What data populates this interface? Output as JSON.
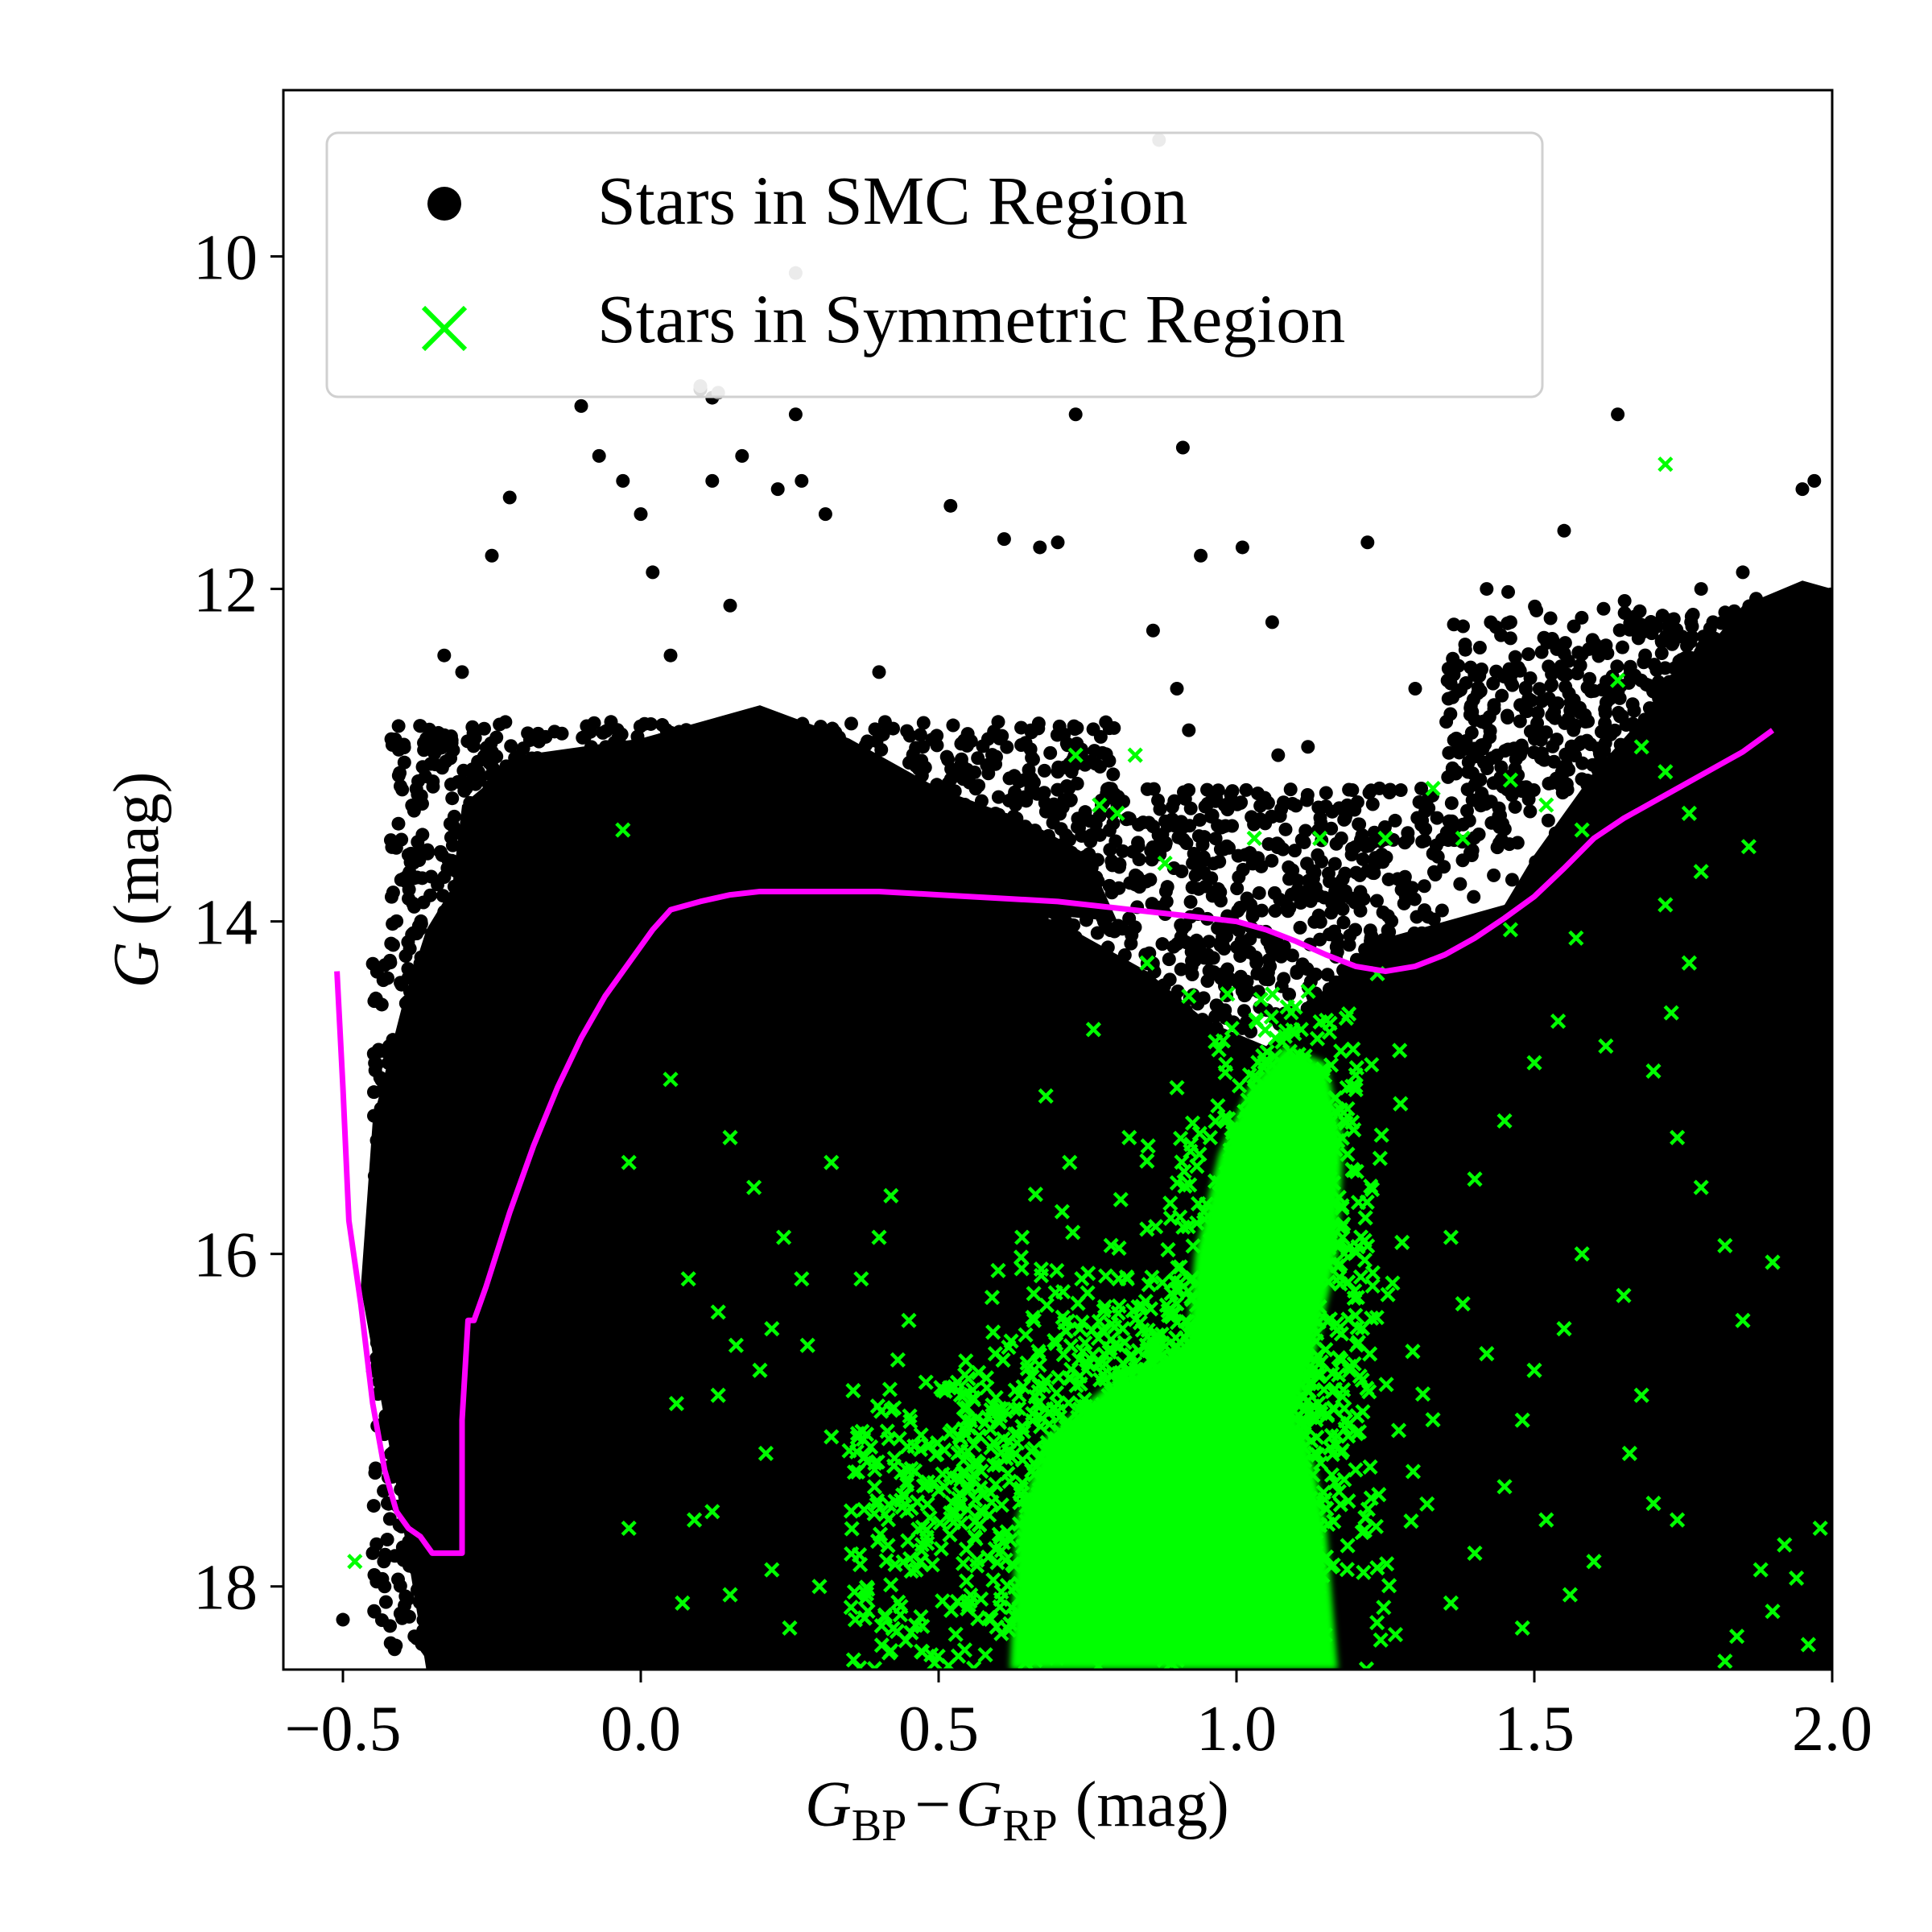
{
  "chart_data": {
    "type": "scatter",
    "title": "",
    "xlim": [
      -0.6,
      2.0
    ],
    "ylim": [
      18.5,
      9.0
    ],
    "y_inverted": true,
    "x_ticks": [
      -0.5,
      0.0,
      0.5,
      1.0,
      1.5,
      2.0
    ],
    "x_tick_labels": [
      "−0.5",
      "0.0",
      "0.5",
      "1.0",
      "1.5",
      "2.0"
    ],
    "y_ticks": [
      10,
      12,
      14,
      16,
      18
    ],
    "y_tick_labels": [
      "10",
      "12",
      "14",
      "16",
      "18"
    ],
    "xlabel": {
      "main": "G",
      "sub1": "BP",
      "minus": "−",
      "sub2": "RP",
      "unit": "(mag)"
    },
    "ylabel": {
      "main": "G",
      "unit": "(mag)"
    },
    "legend": {
      "placement": "upper-left",
      "entries": [
        {
          "label": "Stars in SMC Region",
          "marker": "dot",
          "color": "#000000"
        },
        {
          "label": "Stars in Symmetric Region",
          "marker": "x",
          "color": "#00ff00"
        }
      ]
    },
    "series": [
      {
        "name": "Stars in SMC Region",
        "kind": "scatter",
        "marker": "dot",
        "color": "#000000",
        "bright_points": [
          [
            -0.39,
            13.6
          ],
          [
            -0.36,
            12.9
          ],
          [
            -0.3,
            12.5
          ],
          [
            -0.33,
            12.4
          ],
          [
            -0.22,
            11.45
          ],
          [
            -0.25,
            11.8
          ],
          [
            -0.1,
            10.9
          ],
          [
            -0.07,
            11.2
          ],
          [
            -0.03,
            11.35
          ],
          [
            0.0,
            11.55
          ],
          [
            0.02,
            11.9
          ],
          [
            0.1,
            10.8
          ],
          [
            0.12,
            10.85
          ],
          [
            0.12,
            11.35
          ],
          [
            0.17,
            11.2
          ],
          [
            0.23,
            11.4
          ],
          [
            0.26,
            10.95
          ],
          [
            0.27,
            11.35
          ],
          [
            0.31,
            11.55
          ],
          [
            0.52,
            11.5
          ],
          [
            0.61,
            11.7
          ],
          [
            0.67,
            11.75
          ],
          [
            0.7,
            11.72
          ],
          [
            0.73,
            10.95
          ],
          [
            0.91,
            11.15
          ],
          [
            0.94,
            11.8
          ],
          [
            1.01,
            11.75
          ],
          [
            1.06,
            12.2
          ],
          [
            1.22,
            11.72
          ],
          [
            1.55,
            11.65
          ],
          [
            1.64,
            10.95
          ],
          [
            1.9,
            12.6
          ],
          [
            1.95,
            11.4
          ],
          [
            1.97,
            11.35
          ],
          [
            0.9,
            12.6
          ],
          [
            1.3,
            12.6
          ],
          [
            0.86,
            12.25
          ],
          [
            1.46,
            12.2
          ],
          [
            1.53,
            12.3
          ],
          [
            1.42,
            12.0
          ],
          [
            1.07,
            13.0
          ],
          [
            1.12,
            12.95
          ],
          [
            1.24,
            13.2
          ],
          [
            0.92,
            12.85
          ],
          [
            0.98,
            13.3
          ],
          [
            -0.05,
            12.8
          ],
          [
            0.05,
            12.4
          ],
          [
            0.15,
            12.1
          ],
          [
            0.4,
            12.5
          ],
          [
            0.6,
            12.8
          ],
          [
            0.7,
            13.1
          ],
          [
            0.8,
            13.3
          ],
          [
            -0.5,
            18.2
          ],
          [
            -0.43,
            18.0
          ],
          [
            -0.45,
            17.8
          ],
          [
            -0.38,
            18.3
          ],
          [
            1.8,
            12.2
          ],
          [
            1.85,
            11.9
          ],
          [
            1.78,
            12.0
          ],
          [
            1.92,
            12.4
          ]
        ],
        "dense_regions_note": "dense stellar loci rendered as filled density regions (main sequence + red giant branch)"
      },
      {
        "name": "Stars in Symmetric Region",
        "kind": "scatter",
        "marker": "x",
        "color": "#00ff00",
        "points": [
          [
            1.72,
            11.25
          ],
          [
            -0.03,
            13.45
          ],
          [
            0.73,
            13.0
          ],
          [
            0.83,
            13.0
          ],
          [
            0.77,
            13.3
          ],
          [
            0.8,
            13.35
          ],
          [
            0.88,
            13.65
          ],
          [
            1.03,
            13.5
          ],
          [
            1.14,
            13.5
          ],
          [
            1.25,
            13.5
          ],
          [
            1.33,
            13.2
          ],
          [
            1.38,
            13.5
          ],
          [
            1.46,
            13.15
          ],
          [
            1.52,
            13.3
          ],
          [
            1.58,
            13.45
          ],
          [
            1.64,
            12.55
          ],
          [
            1.68,
            12.95
          ],
          [
            1.72,
            13.1
          ],
          [
            1.76,
            13.35
          ],
          [
            1.86,
            13.55
          ],
          [
            1.78,
            13.7
          ],
          [
            0.05,
            14.95
          ],
          [
            -0.02,
            15.45
          ],
          [
            0.15,
            15.3
          ],
          [
            0.19,
            15.6
          ],
          [
            0.24,
            15.9
          ],
          [
            0.27,
            16.15
          ],
          [
            0.08,
            16.15
          ],
          [
            0.13,
            16.35
          ],
          [
            0.16,
            16.55
          ],
          [
            0.2,
            16.7
          ],
          [
            0.22,
            16.45
          ],
          [
            0.28,
            16.55
          ],
          [
            0.32,
            15.45
          ],
          [
            0.42,
            15.65
          ],
          [
            0.4,
            15.9
          ],
          [
            0.37,
            16.15
          ],
          [
            0.45,
            16.4
          ],
          [
            0.06,
            16.9
          ],
          [
            0.13,
            16.85
          ],
          [
            0.21,
            17.2
          ],
          [
            0.32,
            17.1
          ],
          [
            0.38,
            17.25
          ],
          [
            0.44,
            17.45
          ],
          [
            0.09,
            17.6
          ],
          [
            0.12,
            17.55
          ],
          [
            -0.02,
            17.65
          ],
          [
            0.07,
            18.1
          ],
          [
            0.15,
            18.05
          ],
          [
            0.22,
            17.9
          ],
          [
            0.25,
            18.25
          ],
          [
            0.3,
            18.0
          ],
          [
            0.36,
            18.2
          ],
          [
            0.47,
            17.85
          ],
          [
            0.51,
            17.4
          ],
          [
            0.56,
            17.7
          ],
          [
            -0.48,
            17.85
          ],
          [
            1.82,
            18.45
          ],
          [
            1.84,
            18.3
          ],
          [
            1.88,
            17.9
          ],
          [
            1.9,
            18.15
          ],
          [
            1.94,
            17.95
          ],
          [
            1.96,
            18.35
          ],
          [
            1.98,
            17.65
          ],
          [
            1.92,
            17.75
          ],
          [
            1.74,
            17.6
          ],
          [
            1.7,
            17.5
          ],
          [
            1.66,
            17.2
          ],
          [
            1.68,
            16.85
          ],
          [
            1.65,
            16.25
          ],
          [
            1.58,
            16.0
          ],
          [
            1.55,
            16.45
          ],
          [
            1.5,
            16.7
          ],
          [
            1.48,
            17.0
          ],
          [
            1.42,
            16.6
          ],
          [
            1.38,
            16.3
          ],
          [
            1.36,
            15.9
          ],
          [
            1.4,
            15.55
          ],
          [
            1.45,
            15.2
          ],
          [
            1.5,
            14.85
          ],
          [
            1.54,
            14.6
          ],
          [
            1.62,
            14.75
          ],
          [
            1.73,
            14.55
          ],
          [
            1.7,
            14.9
          ],
          [
            1.74,
            15.3
          ],
          [
            1.78,
            15.6
          ],
          [
            1.82,
            15.95
          ],
          [
            1.9,
            16.05
          ],
          [
            1.85,
            16.4
          ],
          [
            1.45,
            17.4
          ],
          [
            1.4,
            17.8
          ],
          [
            1.36,
            18.1
          ],
          [
            1.48,
            18.25
          ],
          [
            1.56,
            18.05
          ],
          [
            1.6,
            17.85
          ],
          [
            1.52,
            17.6
          ],
          [
            1.76,
            14.25
          ],
          [
            1.72,
            13.9
          ],
          [
            1.57,
            14.1
          ],
          [
            1.46,
            14.05
          ],
          [
            0.76,
            14.65
          ],
          [
            0.85,
            14.25
          ],
          [
            0.92,
            14.45
          ],
          [
            0.68,
            15.05
          ],
          [
            0.72,
            15.45
          ],
          [
            0.82,
            15.3
          ],
          [
            0.9,
            15.0
          ],
          [
            0.64,
            15.9
          ],
          [
            0.6,
            16.1
          ],
          [
            0.66,
            16.4
          ],
          [
            0.55,
            16.75
          ],
          [
            0.6,
            17.0
          ]
        ],
        "dense_regions_note": "dense clump near x 0.65-1.15, G 16.5-18.5 plus plume up to G~14.4 near x 1.0-1.25"
      },
      {
        "name": "isochrone",
        "kind": "line",
        "color": "#ff00ff",
        "x": [
          -0.51,
          -0.5,
          -0.49,
          -0.47,
          -0.45,
          -0.43,
          -0.41,
          -0.39,
          -0.37,
          -0.35,
          -0.3,
          -0.3,
          -0.3,
          -0.29,
          -0.28,
          -0.27,
          -0.26,
          -0.22,
          -0.18,
          -0.14,
          -0.1,
          -0.06,
          -0.02,
          0.02,
          0.05,
          0.1,
          0.15,
          0.2,
          0.3,
          0.4,
          0.5,
          0.6,
          0.7,
          0.8,
          0.9,
          1.0,
          1.05,
          1.1,
          1.15,
          1.2,
          1.25,
          1.3,
          1.35,
          1.4,
          1.45,
          1.5,
          1.55,
          1.6,
          1.65,
          1.7,
          1.75,
          1.8,
          1.85,
          1.9
        ],
        "y": [
          14.3,
          15.0,
          15.8,
          16.3,
          16.9,
          17.3,
          17.55,
          17.65,
          17.7,
          17.8,
          17.8,
          17.5,
          17.0,
          16.4,
          16.4,
          16.3,
          16.2,
          15.75,
          15.35,
          15.0,
          14.7,
          14.45,
          14.25,
          14.05,
          13.93,
          13.88,
          13.84,
          13.82,
          13.82,
          13.82,
          13.84,
          13.86,
          13.88,
          13.92,
          13.96,
          14.0,
          14.05,
          14.12,
          14.2,
          14.27,
          14.3,
          14.27,
          14.2,
          14.1,
          13.98,
          13.85,
          13.68,
          13.5,
          13.38,
          13.28,
          13.18,
          13.08,
          12.98,
          12.85
        ]
      }
    ]
  }
}
